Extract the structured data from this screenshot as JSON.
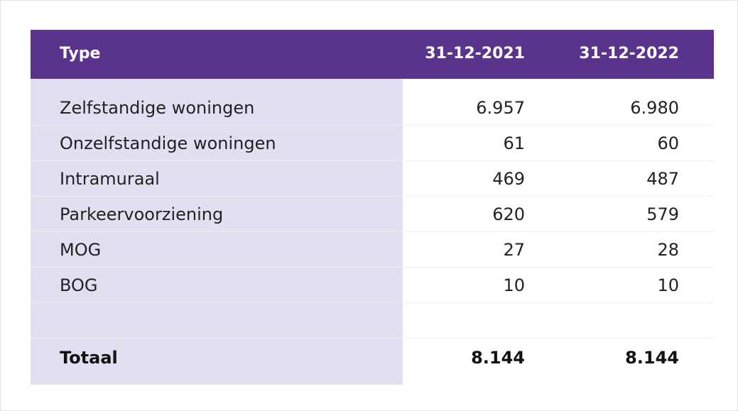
{
  "table": {
    "headers": {
      "type": "Type",
      "col_2021": "31-12-2021",
      "col_2022": "31-12-2022"
    },
    "rows": [
      {
        "label": "Zelfstandige woningen",
        "v2021": "6.957",
        "v2022": "6.980"
      },
      {
        "label": "Onzelfstandige woningen",
        "v2021": "61",
        "v2022": "60"
      },
      {
        "label": "Intramuraal",
        "v2021": "469",
        "v2022": "487"
      },
      {
        "label": "Parkeervoorziening",
        "v2021": "620",
        "v2022": "579"
      },
      {
        "label": "MOG",
        "v2021": "27",
        "v2022": "28"
      },
      {
        "label": "BOG",
        "v2021": "10",
        "v2022": "10"
      }
    ],
    "total": {
      "label": "Totaal",
      "v2021": "8.144",
      "v2022": "8.144"
    }
  },
  "colors": {
    "header_bg": "#5a338c",
    "label_column_bg": "#e3dff0"
  }
}
